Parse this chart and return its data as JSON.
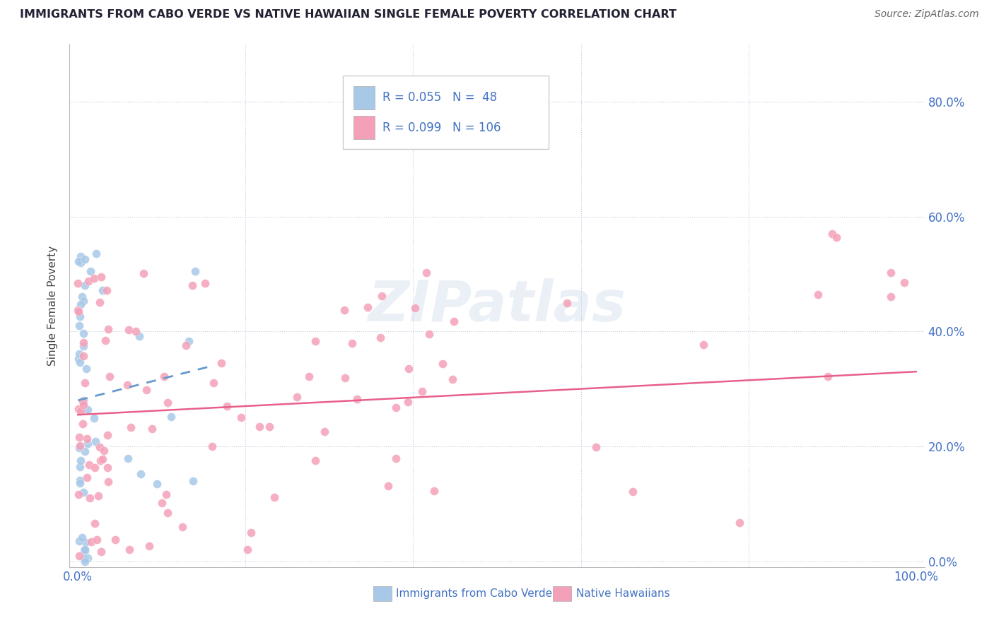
{
  "title": "IMMIGRANTS FROM CABO VERDE VS NATIVE HAWAIIAN SINGLE FEMALE POVERTY CORRELATION CHART",
  "source": "Source: ZipAtlas.com",
  "ylabel": "Single Female Poverty",
  "legend_label_1": "Immigrants from Cabo Verde",
  "legend_label_2": "Native Hawaiians",
  "R1": 0.055,
  "N1": 48,
  "R2": 0.099,
  "N2": 106,
  "color1": "#a8c8e8",
  "color2": "#f4a0b8",
  "line1_color": "#6699cc",
  "line2_color": "#e8608a",
  "axis_label_color": "#4472c4",
  "watermark": "ZIPatlas",
  "xlim": [
    -0.01,
    1.01
  ],
  "ylim": [
    -0.01,
    0.9
  ],
  "ytick_vals": [
    0.0,
    0.2,
    0.4,
    0.6,
    0.8
  ],
  "ytick_labels": [
    "0.0%",
    "20.0%",
    "40.0%",
    "60.0%",
    "80.0%"
  ],
  "xtick_vals": [
    0.0,
    1.0
  ],
  "xtick_labels": [
    "0.0%",
    "100.0%"
  ],
  "cv_seed": 12,
  "nh_seed": 7
}
